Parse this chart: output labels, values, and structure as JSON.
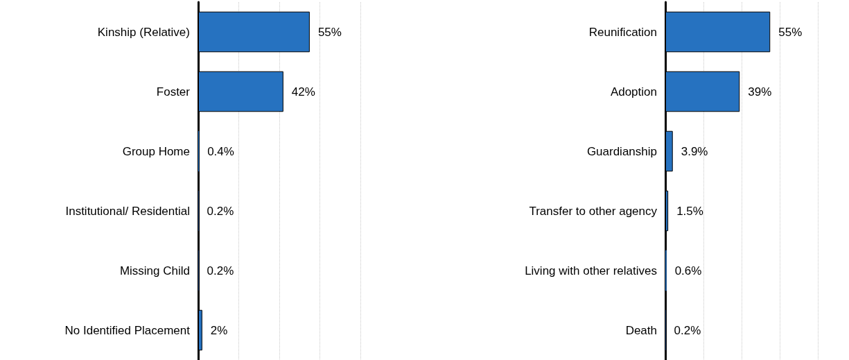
{
  "chart_data": [
    {
      "type": "bar",
      "orientation": "horizontal",
      "categories": [
        "Kinship (Relative)",
        "Foster",
        "Group Home",
        "Institutional/ Residential",
        "Missing Child",
        "No Identified Placement"
      ],
      "values": [
        55,
        42,
        0.4,
        0.2,
        0.2,
        2
      ],
      "value_labels": [
        "55%",
        "42%",
        "0.4%",
        "0.2%",
        "0.2%",
        "2%"
      ],
      "color": "#2672c0",
      "xlim": [
        0,
        80
      ],
      "xticks": [
        {
          "value": 0,
          "label": null
        },
        {
          "value": 20,
          "label": null
        },
        {
          "value": 40,
          "label": null
        },
        {
          "value": 60,
          "label": null
        },
        {
          "value": 80,
          "label": null
        }
      ],
      "grid": "x",
      "tick_labels": "y"
    },
    {
      "type": "bar",
      "orientation": "horizontal",
      "categories": [
        "Reunification",
        "Adoption",
        "Guardianship",
        "Transfer to other agency",
        "Living with other relatives",
        "Death"
      ],
      "values": [
        55,
        39,
        3.9,
        1.5,
        0.6,
        0.2
      ],
      "value_labels": [
        "55%",
        "39%",
        "3.9%",
        "1.5%",
        "0.6%",
        "0.2%"
      ],
      "color": "#2672c0",
      "xlim": [
        0,
        80
      ],
      "xticks": [
        {
          "value": 0,
          "label": null
        },
        {
          "value": 20,
          "label": null
        },
        {
          "value": 40,
          "label": null
        },
        {
          "value": 60,
          "label": null
        },
        {
          "value": 80,
          "label": null
        }
      ],
      "grid": "x",
      "tick_labels": "y"
    }
  ]
}
